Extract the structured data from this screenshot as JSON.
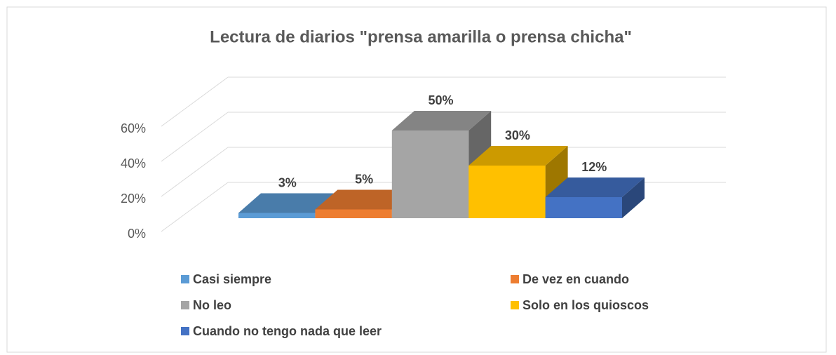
{
  "chart_data": {
    "type": "bar3d",
    "title": "Lectura de diarios \"prensa amarilla o prensa chicha\"",
    "series": [
      {
        "name": "Casi siempre",
        "color": "#5b9bd5",
        "values": [
          3
        ],
        "value_labels": [
          "3%"
        ]
      },
      {
        "name": "De vez en cuando",
        "color": "#ed7d31",
        "values": [
          5
        ],
        "value_labels": [
          "5%"
        ]
      },
      {
        "name": "No leo",
        "color": "#a5a5a5",
        "values": [
          50
        ],
        "value_labels": [
          "50%"
        ]
      },
      {
        "name": "Solo en los quioscos",
        "color": "#ffc000",
        "values": [
          30
        ],
        "value_labels": [
          "30%"
        ]
      },
      {
        "name": "Cuando no tengo nada que leer",
        "color": "#4472c4",
        "values": [
          12
        ],
        "value_labels": [
          "12%"
        ]
      }
    ],
    "ylim": [
      0,
      60
    ],
    "yticks": [
      {
        "value": 0,
        "label": "0%"
      },
      {
        "value": 20,
        "label": "20%"
      },
      {
        "value": 40,
        "label": "40%"
      },
      {
        "value": 60,
        "label": "60%"
      }
    ],
    "grid": true,
    "legend": "bottom"
  }
}
